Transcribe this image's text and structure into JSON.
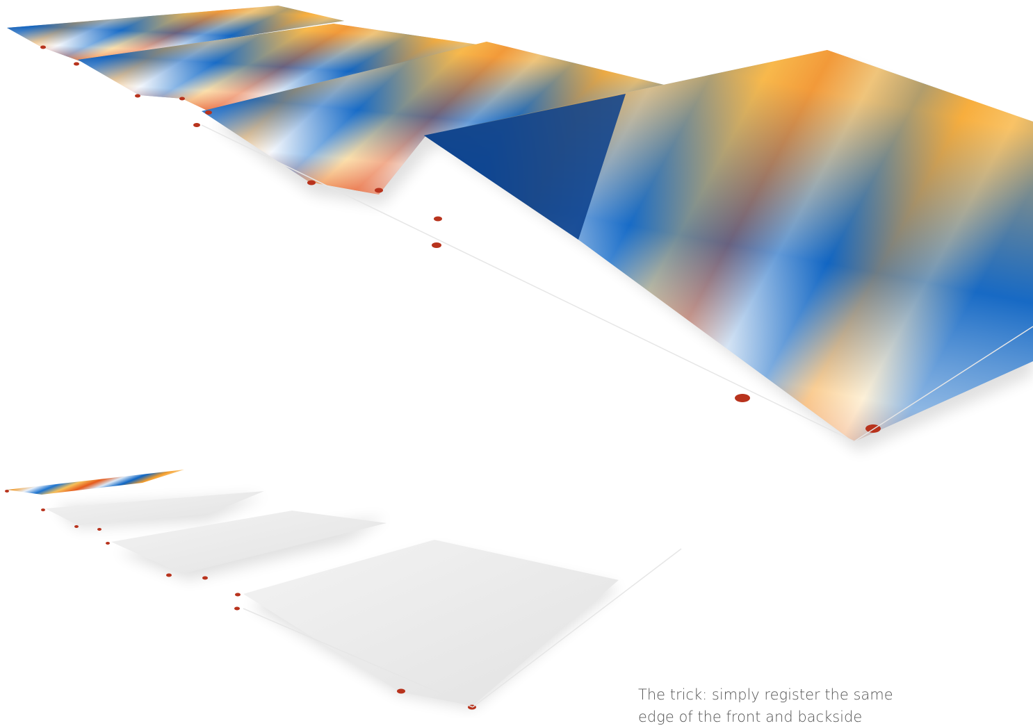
{
  "caption": {
    "lines": [
      "The trick: simply register the same",
      "edge of the front and backside"
    ]
  }
}
